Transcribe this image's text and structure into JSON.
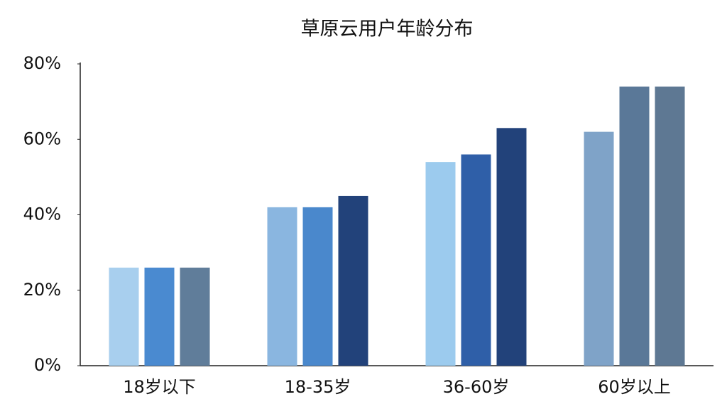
{
  "chart_data": {
    "type": "bar",
    "title": "草原云用户年龄分布",
    "categories": [
      "18岁以下",
      "18-35岁",
      "36-60岁",
      "60岁以上"
    ],
    "series": [
      {
        "colors": [
          "#a8cfee",
          "#8ab6e0",
          "#9ccbee",
          "#7fa3c8"
        ],
        "values": [
          26,
          42,
          54,
          62
        ]
      },
      {
        "colors": [
          "#4a8ad0",
          "#4a88cc",
          "#2f5fa8",
          "#5a7898"
        ],
        "values": [
          26,
          42,
          56,
          74
        ]
      },
      {
        "colors": [
          "#607d9a",
          "#22427a",
          "#22427a",
          "#5e7893"
        ],
        "values": [
          26,
          45,
          63,
          74
        ]
      }
    ],
    "ylim": [
      0,
      80
    ],
    "yticks": [
      {
        "value": 0,
        "label": "0%"
      },
      {
        "value": 20,
        "label": "20%"
      },
      {
        "value": 40,
        "label": "40%"
      },
      {
        "value": 60,
        "label": "60%"
      },
      {
        "value": 80,
        "label": "80%"
      }
    ],
    "grid": false
  }
}
